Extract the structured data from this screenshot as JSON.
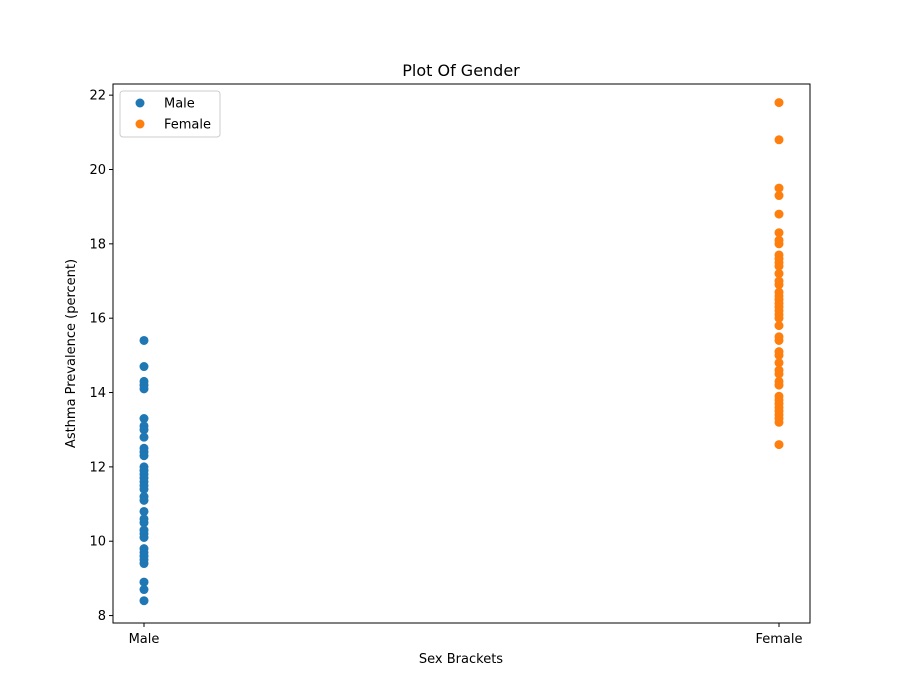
{
  "chart_data": {
    "type": "scatter",
    "title": "Plot Of Gender",
    "xlabel": "Sex Brackets",
    "ylabel": "Asthma Prevalence (percent)",
    "categories": [
      "Male",
      "Female"
    ],
    "ylim": [
      7.8,
      22.3
    ],
    "yticks": [
      8,
      10,
      12,
      14,
      16,
      18,
      20,
      22
    ],
    "grid": false,
    "legend_position": "top-left",
    "series": [
      {
        "name": "Male",
        "color": "#1f77b4",
        "category": "Male",
        "values": [
          15.4,
          14.7,
          14.3,
          14.2,
          14.1,
          13.3,
          13.1,
          13.0,
          12.8,
          12.5,
          12.4,
          12.3,
          12.0,
          11.9,
          11.8,
          11.7,
          11.6,
          11.5,
          11.4,
          11.2,
          11.1,
          10.8,
          10.6,
          10.5,
          10.3,
          10.2,
          10.1,
          9.8,
          9.7,
          9.6,
          9.5,
          9.4,
          8.9,
          8.7,
          8.4
        ]
      },
      {
        "name": "Female",
        "color": "#ff7f0e",
        "category": "Female",
        "values": [
          21.8,
          20.8,
          19.5,
          19.3,
          18.8,
          18.3,
          18.1,
          18.0,
          17.7,
          17.6,
          17.5,
          17.4,
          17.2,
          17.0,
          16.9,
          16.7,
          16.6,
          16.5,
          16.4,
          16.3,
          16.2,
          16.1,
          16.0,
          15.8,
          15.5,
          15.4,
          15.1,
          15.0,
          14.8,
          14.6,
          14.5,
          14.3,
          14.2,
          13.9,
          13.8,
          13.7,
          13.6,
          13.5,
          13.4,
          13.3,
          13.2,
          12.6
        ]
      }
    ]
  }
}
